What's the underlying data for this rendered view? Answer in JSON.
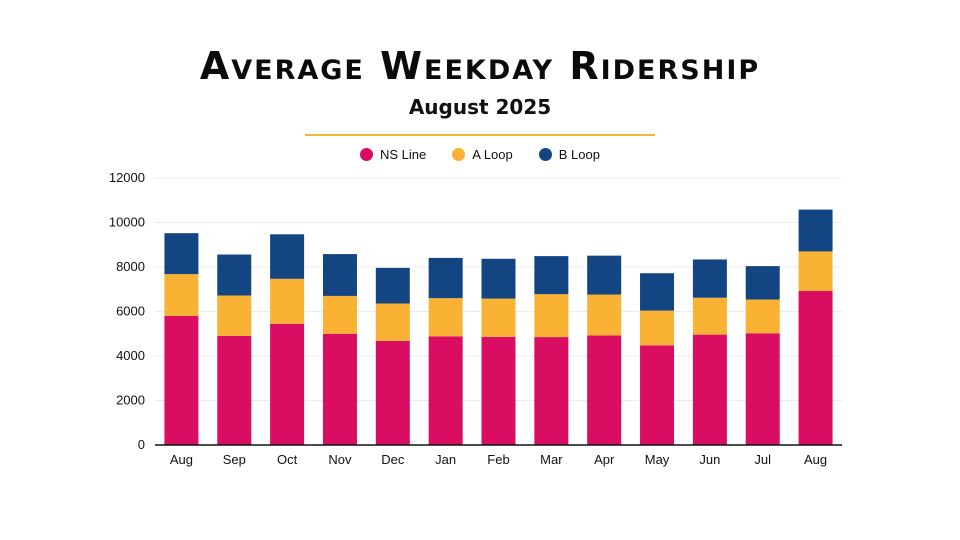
{
  "chart_data": {
    "type": "bar",
    "stacked": true,
    "title": "Average Weekday Ridership",
    "subtitle": "August 2025",
    "categories": [
      "Aug",
      "Sep",
      "Oct",
      "Nov",
      "Dec",
      "Jan",
      "Feb",
      "Mar",
      "Apr",
      "May",
      "Jun",
      "Jul",
      "Aug"
    ],
    "series": [
      {
        "name": "NS Line",
        "color": "#d90d62",
        "values": [
          5800,
          4900,
          5450,
          5000,
          4680,
          4880,
          4860,
          4850,
          4920,
          4480,
          4960,
          5020,
          6920
        ]
      },
      {
        "name": "A Loop",
        "color": "#f9b233",
        "values": [
          1880,
          1820,
          2020,
          1700,
          1680,
          1720,
          1720,
          1930,
          1840,
          1560,
          1660,
          1520,
          1780
        ]
      },
      {
        "name": "B Loop",
        "color": "#144583",
        "values": [
          1840,
          1840,
          2000,
          1880,
          1600,
          1810,
          1790,
          1710,
          1750,
          1680,
          1720,
          1500,
          1880
        ]
      }
    ],
    "ylim": [
      0,
      12000
    ],
    "yticks": [
      0,
      2000,
      4000,
      6000,
      8000,
      10000,
      12000
    ],
    "xlabel": "",
    "ylabel": "",
    "grid": true,
    "legend": "top-center"
  }
}
